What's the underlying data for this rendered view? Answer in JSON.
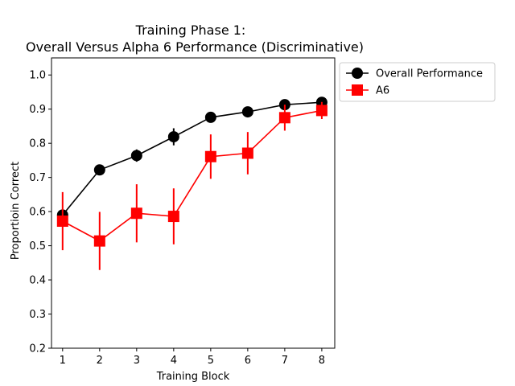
{
  "chart_data": {
    "type": "line",
    "title_line1": "Training Phase 1:",
    "title_line2": "Overall Versus Alpha 6 Performance (Discriminative)",
    "xlabel": "Training Block",
    "ylabel": "Proportioin Correct",
    "x": [
      1,
      2,
      3,
      4,
      5,
      6,
      7,
      8
    ],
    "xlim": [
      0.7,
      8.35
    ],
    "ylim": [
      0.2,
      1.05
    ],
    "yticks": [
      0.2,
      0.3,
      0.4,
      0.5,
      0.6,
      0.7,
      0.8,
      0.9,
      1.0
    ],
    "ytick_labels": [
      "0.2",
      "0.3",
      "0.4",
      "0.5",
      "0.6",
      "0.7",
      "0.8",
      "0.9",
      "1.0"
    ],
    "xtick_labels": [
      "1",
      "2",
      "3",
      "4",
      "5",
      "6",
      "7",
      "8"
    ],
    "legend_position": "outside-right-top",
    "series": [
      {
        "name": "Overall Performance",
        "color": "#000000",
        "marker": "circle",
        "values": [
          0.59,
          0.722,
          0.764,
          0.819,
          0.876,
          0.892,
          0.913,
          0.92
        ],
        "errors": [
          0.012,
          0.015,
          0.018,
          0.025,
          0.014,
          0.01,
          0.012,
          0.01
        ]
      },
      {
        "name": "A6",
        "color": "#ff0000",
        "marker": "square",
        "values": [
          0.572,
          0.514,
          0.595,
          0.586,
          0.761,
          0.771,
          0.875,
          0.896
        ],
        "errors": [
          0.085,
          0.085,
          0.085,
          0.082,
          0.065,
          0.062,
          0.038,
          0.025
        ]
      }
    ]
  }
}
